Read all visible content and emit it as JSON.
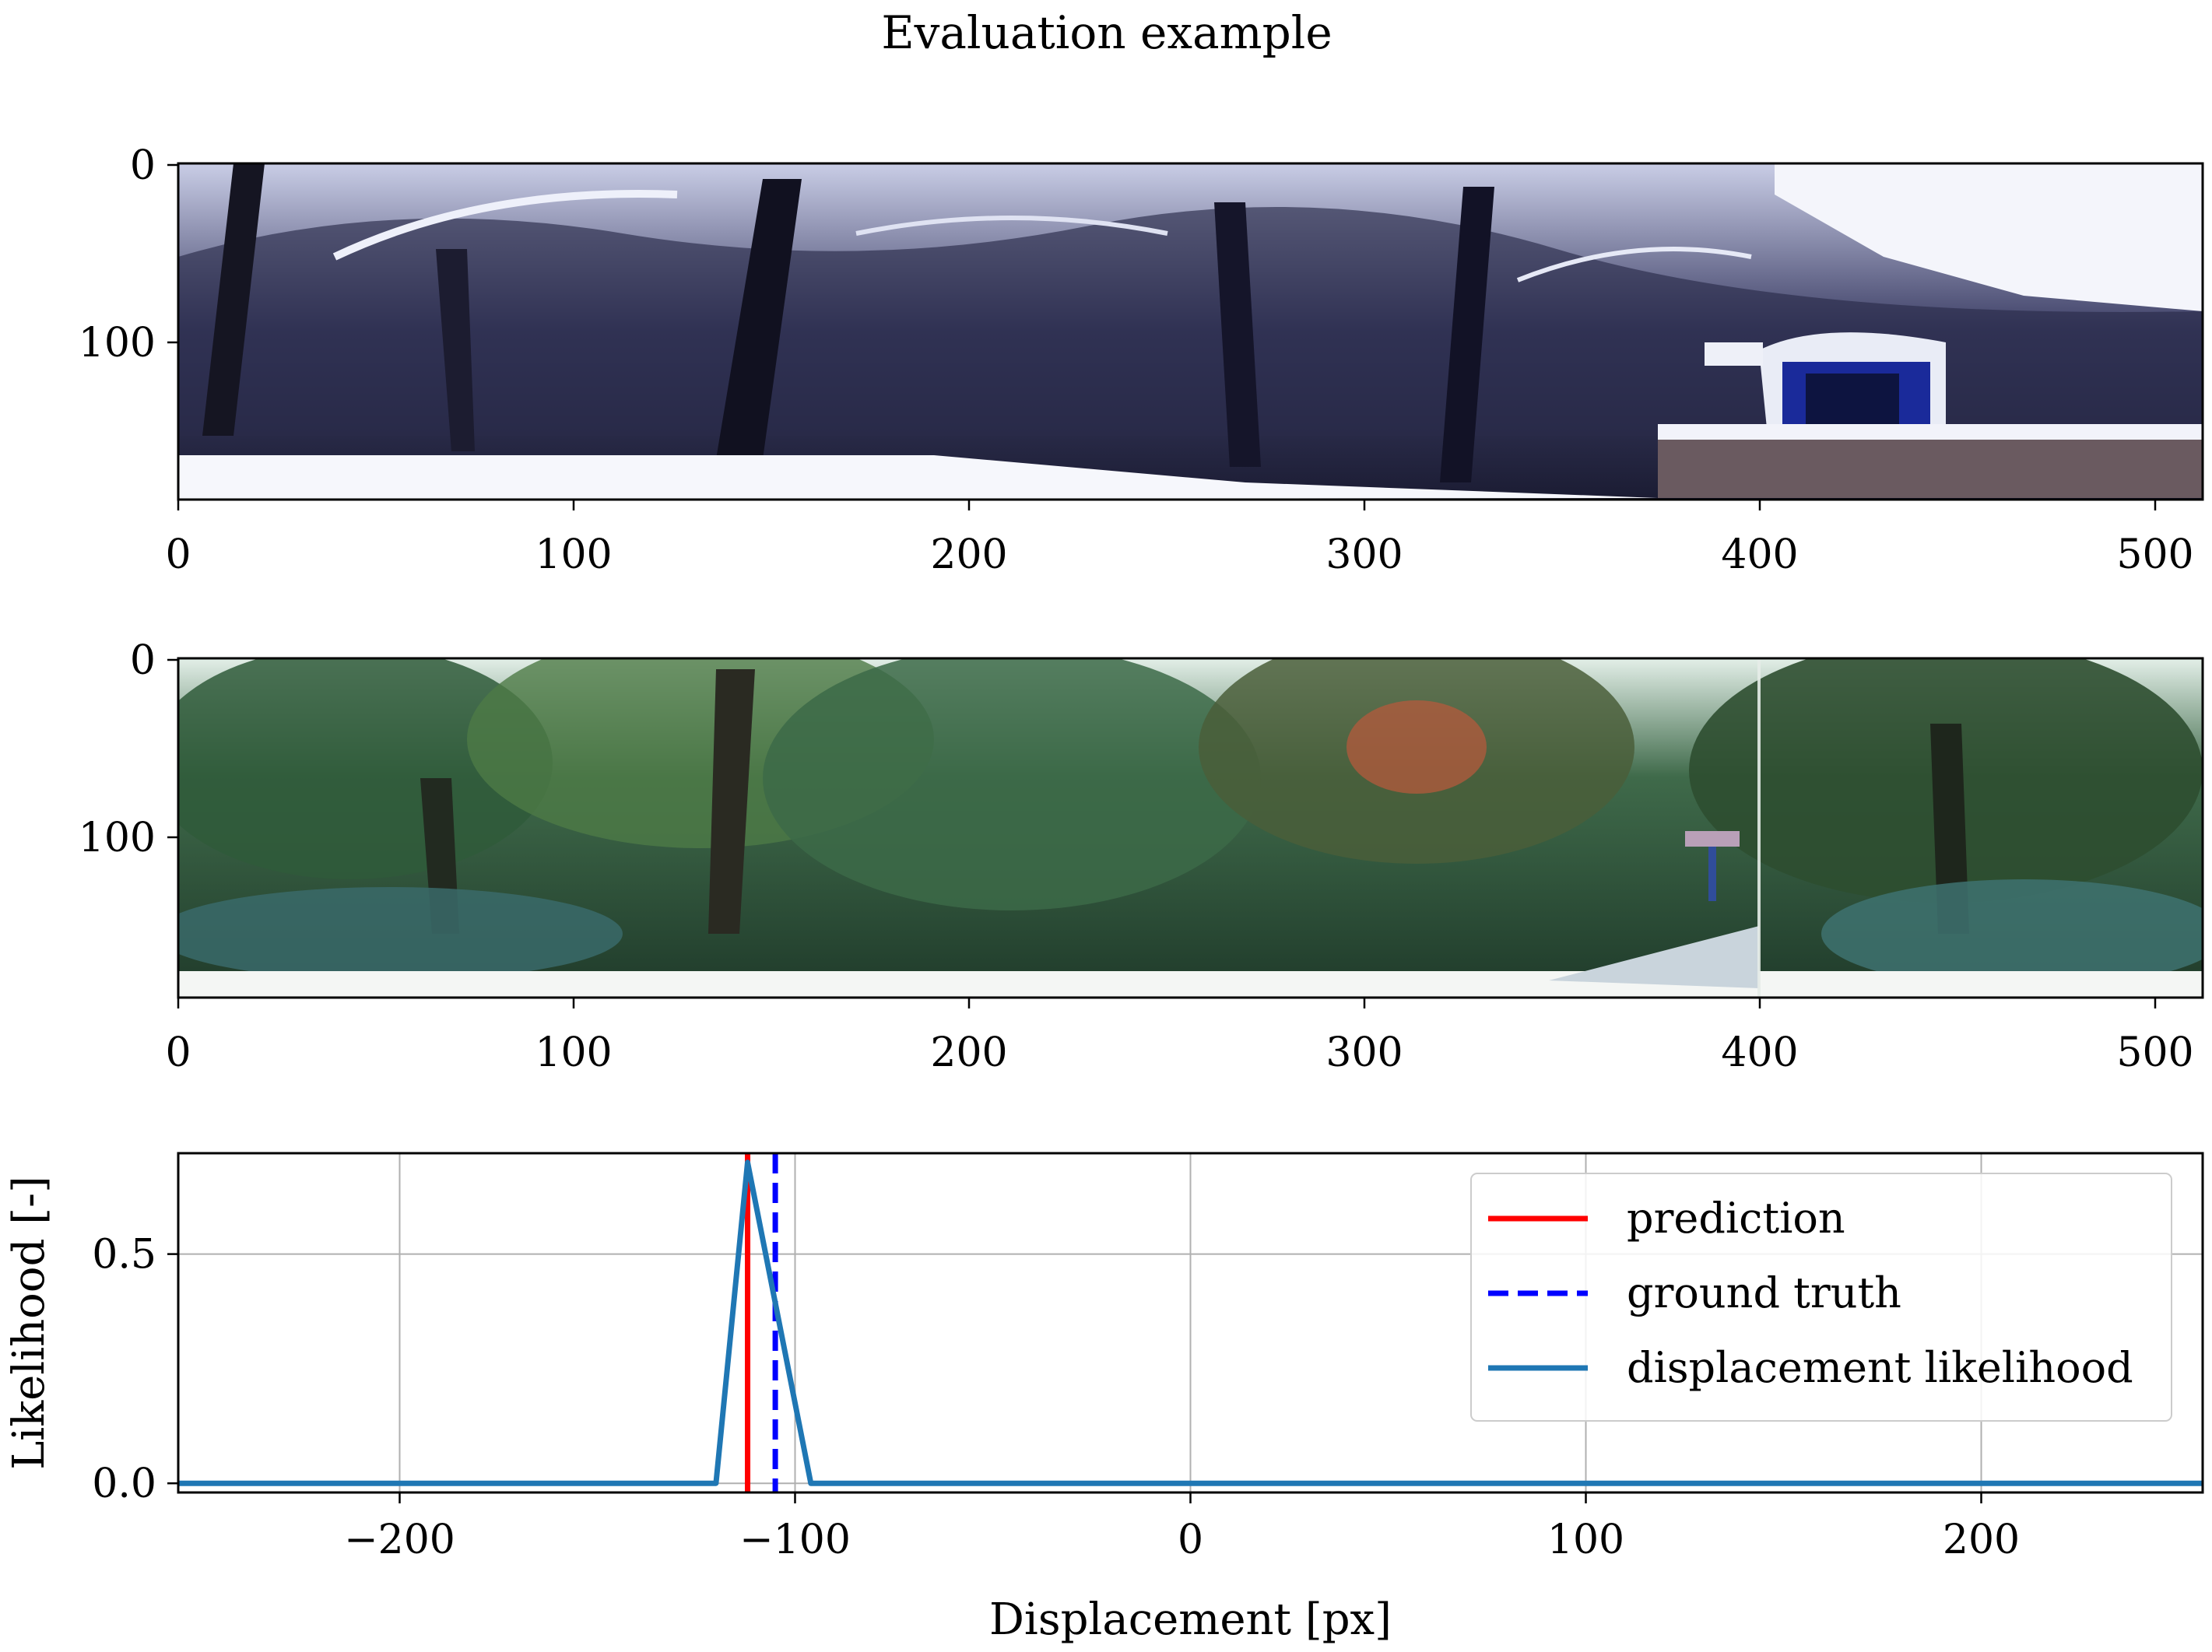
{
  "figure": {
    "title": "Evaluation example"
  },
  "panels": [
    {
      "kind": "image",
      "scene": "snowy park with bare trees and a small blue shelter on a stone wall",
      "xticks": [
        0,
        100,
        200,
        300,
        400,
        500
      ],
      "yticks": [
        0,
        100
      ],
      "xlim": [
        0,
        512
      ],
      "ylim": [
        0,
        185
      ]
    },
    {
      "kind": "image",
      "scene": "summer park with green and autumn-red trees and a path",
      "xticks": [
        0,
        100,
        200,
        300,
        400,
        500
      ],
      "yticks": [
        0,
        100
      ],
      "xlim": [
        0,
        512
      ],
      "ylim": [
        0,
        185
      ]
    }
  ],
  "colors": {
    "prediction": "#ff0000",
    "ground_truth": "#0000ff",
    "likelihood": "#1f77b4",
    "grid": "#b0b0b0"
  },
  "chart_data": {
    "type": "line",
    "title": "",
    "xlabel": "Displacement [px]",
    "ylabel": "Likelihood [-]",
    "xlim": [
      -256,
      256
    ],
    "ylim": [
      -0.02,
      0.72
    ],
    "xticks": [
      -200,
      -100,
      0,
      100,
      200
    ],
    "xtick_labels": [
      "−200",
      "−100",
      "0",
      "100",
      "200"
    ],
    "yticks": [
      0.0,
      0.5
    ],
    "ytick_labels": [
      "0.0",
      "0.5"
    ],
    "grid": true,
    "legend_position": "top-right",
    "series": [
      {
        "name": "displacement likelihood",
        "style": "solid",
        "x": [
          -256,
          -120,
          -112,
          -96,
          256
        ],
        "y": [
          0,
          0,
          0.7,
          0,
          0
        ]
      }
    ],
    "vlines": [
      {
        "name": "prediction",
        "x": -112,
        "style": "solid"
      },
      {
        "name": "ground truth",
        "x": -105,
        "style": "dashed"
      }
    ],
    "legend": [
      "prediction",
      "ground truth",
      "displacement likelihood"
    ]
  }
}
